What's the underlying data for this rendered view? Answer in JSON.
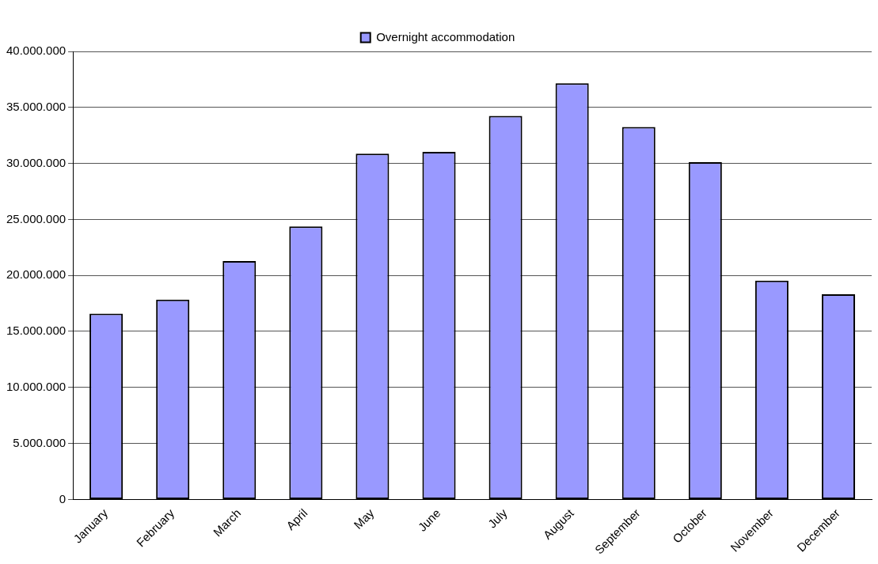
{
  "chart_data": {
    "type": "bar",
    "categories": [
      "January",
      "February",
      "March",
      "April",
      "May",
      "June",
      "July",
      "August",
      "September",
      "October",
      "November",
      "December"
    ],
    "series": [
      {
        "name": "Overnight accommodation",
        "color": "#9999ff",
        "values": [
          16580000,
          17840000,
          21280000,
          24370000,
          30870000,
          31030000,
          34250000,
          37160000,
          33250000,
          30110000,
          19540000,
          18320000
        ]
      }
    ],
    "ylim": [
      0,
      40000000
    ],
    "yticks": [
      {
        "value": 0,
        "label": "0"
      },
      {
        "value": 5000000,
        "label": "5.000.000"
      },
      {
        "value": 10000000,
        "label": "10.000.000"
      },
      {
        "value": 15000000,
        "label": "15.000.000"
      },
      {
        "value": 20000000,
        "label": "20.000.000"
      },
      {
        "value": 25000000,
        "label": "25.000.000"
      },
      {
        "value": 30000000,
        "label": "30.000.000"
      },
      {
        "value": 35000000,
        "label": "35.000.000"
      },
      {
        "value": 40000000,
        "label": "40.000.000"
      }
    ],
    "grid": "y",
    "legend": "top"
  }
}
